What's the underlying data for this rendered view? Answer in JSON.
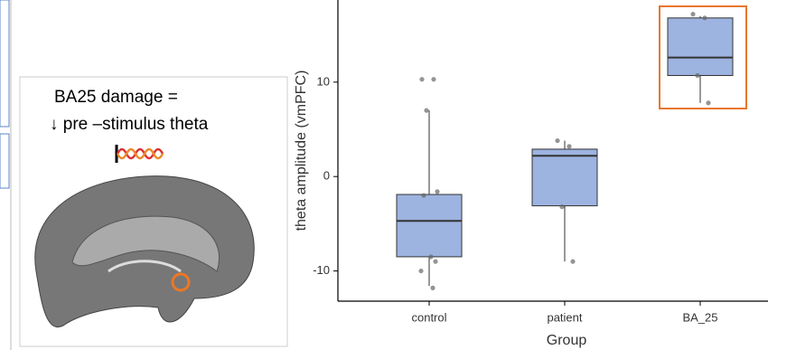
{
  "panel": {
    "lines": [
      "BA25 damage =",
      "↓ pre –stimulus theta"
    ]
  },
  "chart_data": {
    "type": "box",
    "x_label": "Group",
    "y_label": "theta amplitude (vmPFC)",
    "categories": [
      "control",
      "patient",
      "BA_25"
    ],
    "color": "#9db3e0",
    "boxes": [
      {
        "whislo": -11.6,
        "q1": -8.5,
        "med": -4.7,
        "q3": -1.9,
        "whishi": 7.0,
        "points": [
          10.3,
          10.3,
          7.0,
          -1.6,
          -2.0,
          -8.5,
          -9.0,
          -10.0,
          -11.8
        ]
      },
      {
        "whislo": -9.0,
        "q1": -3.1,
        "med": 2.2,
        "q3": 2.9,
        "whishi": 3.8,
        "points": [
          3.8,
          3.2,
          -3.2,
          -9.0
        ]
      },
      {
        "whislo": 7.8,
        "q1": 10.7,
        "med": 12.6,
        "q3": 16.8,
        "whishi": 17.0,
        "points": [
          17.2,
          16.8,
          10.7,
          7.8
        ]
      }
    ],
    "ylim": [
      -13.2,
      18.7
    ],
    "yticks": [
      -10,
      0,
      10
    ]
  }
}
